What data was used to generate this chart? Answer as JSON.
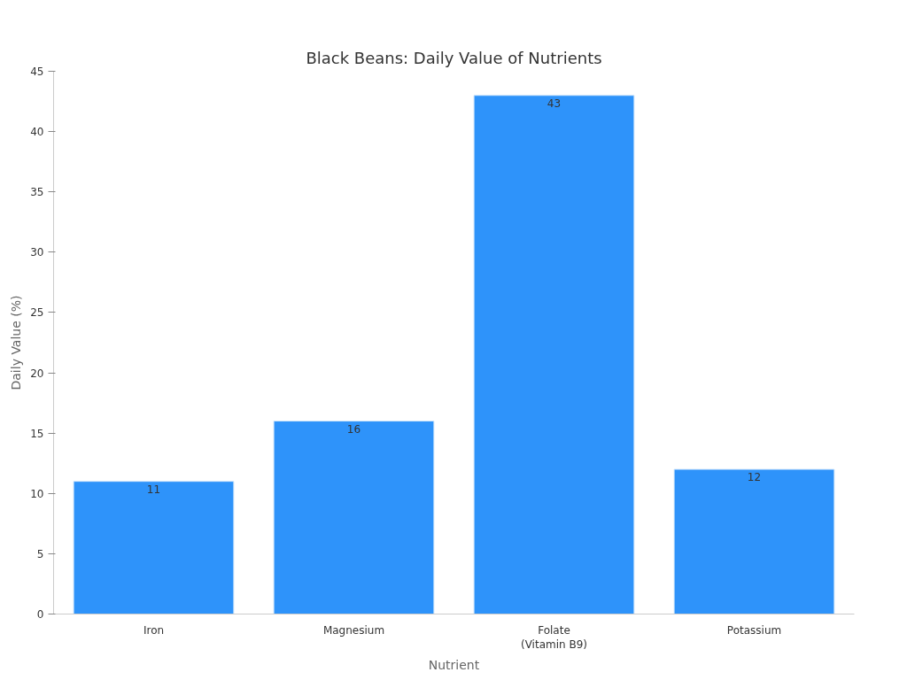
{
  "chart_data": {
    "type": "bar",
    "title": "Black Beans: Daily Value of Nutrients",
    "xlabel": "Nutrient",
    "ylabel": "Daily Value (%)",
    "categories": [
      "Iron",
      "Magnesium",
      "Folate\n(Vitamin B9)",
      "Potassium"
    ],
    "values": [
      11,
      16,
      43,
      12
    ],
    "color": "#2e93fa",
    "ylim": [
      0,
      45
    ],
    "yticks": [
      0,
      5,
      10,
      15,
      20,
      25,
      30,
      35,
      40,
      45
    ],
    "grid": false,
    "data_labels": true
  }
}
